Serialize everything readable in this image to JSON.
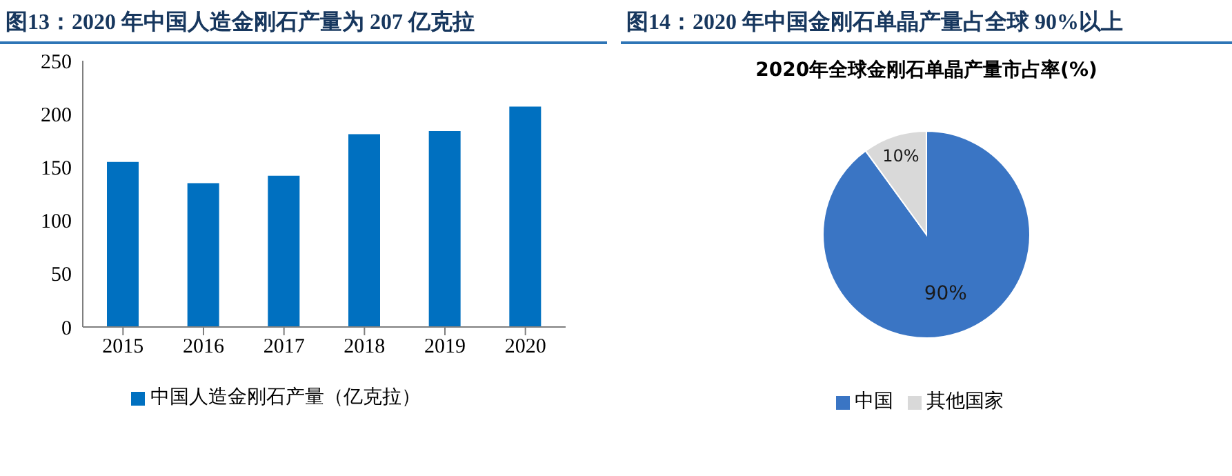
{
  "chart_data": [
    {
      "type": "bar",
      "title": "图13：2020 年中国人造金刚石产量为 207 亿克拉",
      "categories": [
        "2015",
        "2016",
        "2017",
        "2018",
        "2019",
        "2020"
      ],
      "series": [
        {
          "name": "中国人造金刚石产量（亿克拉）",
          "color": "#0070c0",
          "values": [
            155,
            135,
            142,
            181,
            184,
            207
          ]
        }
      ],
      "ylim": [
        0,
        250
      ],
      "yticks": [
        0,
        50,
        100,
        150,
        200,
        250
      ],
      "grid": false,
      "legend": "bottom"
    },
    {
      "type": "pie",
      "title": "图14：2020 年中国金刚石单晶产量占全球 90%以上",
      "subtitle": "2020年全球金刚石单晶产量市占率(%)",
      "categories": [
        "中国",
        "其他国家"
      ],
      "values": [
        90,
        10
      ],
      "colors": [
        "#3a75c4",
        "#d9d9d9"
      ],
      "value_labels": [
        "90%",
        "10%"
      ],
      "legend": "bottom"
    }
  ]
}
